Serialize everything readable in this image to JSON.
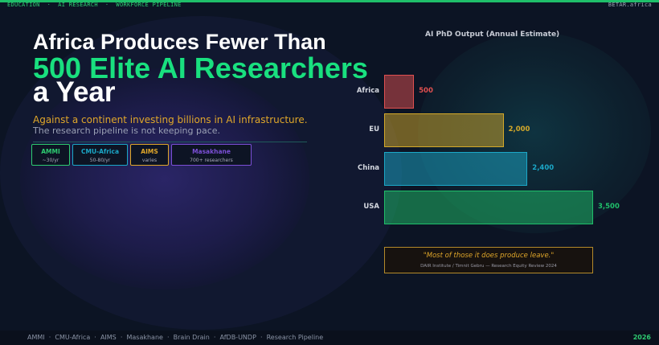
{
  "topbar": {
    "left": "EDUCATION  ·  AI RESEARCH  ·  WORKFORCE PIPELINE",
    "right": "BETAR.africa"
  },
  "headline": {
    "line1": "Africa Produces Fewer Than",
    "line2": "500 Elite AI Researchers",
    "line3": "a Year"
  },
  "subtitle": {
    "line1": "Against a continent investing billions in AI infrastructure.",
    "line2": "The research pipeline is not keeping pace."
  },
  "chips": [
    {
      "name": "AMMI",
      "detail": "~30/yr",
      "color": "#2ecc71"
    },
    {
      "name": "CMU-Africa",
      "detail": "50-80/yr",
      "color": "#1ba8c8"
    },
    {
      "name": "AIMS",
      "detail": "varies",
      "color": "#e0a72a"
    },
    {
      "name": "Masakhane",
      "detail": "700+ researchers",
      "color": "#7b4fd6"
    }
  ],
  "chart_data": {
    "type": "bar",
    "orientation": "horizontal",
    "title": "AI PhD Output (Annual Estimate)",
    "categories": [
      "Africa",
      "EU",
      "China",
      "USA"
    ],
    "values": [
      500,
      2000,
      2400,
      3500
    ],
    "value_labels": [
      "500",
      "2,000",
      "2,400",
      "3,500"
    ],
    "colors": [
      "#e05050",
      "#d4a92a",
      "#1ba8c8",
      "#1fbf6a"
    ],
    "xlim": [
      0,
      3500
    ],
    "grid": false
  },
  "quote": {
    "text": "\"Most of those it does produce leave.\"",
    "source": "DAIR Institute / Timnit Gebru — Research Equity Review 2024"
  },
  "footer": {
    "tags": "AMMI  ·  CMU-Africa  ·  AIMS  ·  Masakhane  ·  Brain Drain  ·  AfDB-UNDP  ·  Research Pipeline",
    "year": "2026"
  }
}
